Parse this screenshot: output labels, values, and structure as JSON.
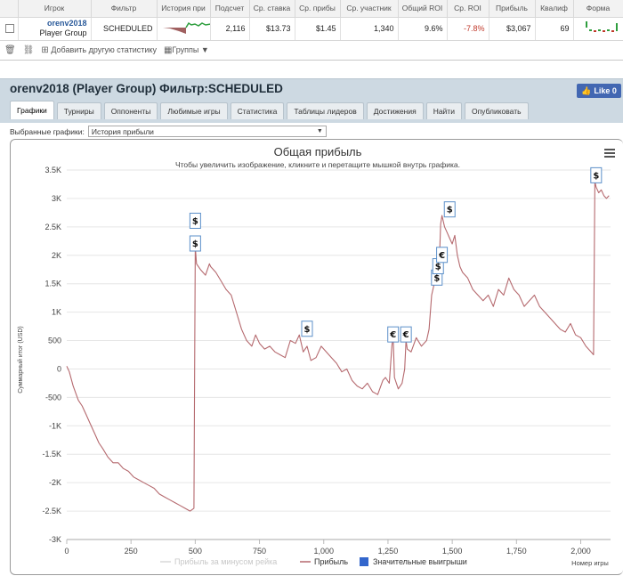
{
  "stats": {
    "headers": [
      "Игрок",
      "Фильтр",
      "История при",
      "Подсчет",
      "Ср. ставка",
      "Ср. прибы",
      "Ср. участник",
      "Общий ROI",
      "Ср. ROI",
      "Прибыль",
      "Квалиф",
      "Форма"
    ],
    "row": {
      "player_name": "orenv2018",
      "player_group": "Player Group",
      "filter": "SCHEDULED",
      "count": "2,116",
      "avg_stake": "$13.73",
      "avg_profit": "$1.45",
      "avg_entrants": "1,340",
      "total_roi": "9.6%",
      "avg_roi": "-7.8%",
      "profit": "$3,067",
      "qualif": "69"
    },
    "toolbar": {
      "add_stat": "Добавить другую статистику",
      "groups": "Группы"
    }
  },
  "header": {
    "title": "orenv2018 (Player Group) Фильтр:SCHEDULED",
    "like": "Like 0",
    "tabs": [
      "Графики",
      "Турниры",
      "Оппоненты",
      "Любимые игры",
      "Статистика",
      "Таблицы лидеров",
      "Достижения",
      "Найти",
      "Опубликовать"
    ],
    "active_tab": 0
  },
  "selector": {
    "label": "Выбранные графики:",
    "value": "История прибыли"
  },
  "colors": {
    "line": "#b5696e",
    "neg_roi": "#c0392b",
    "flag_border": "#5b8fc9",
    "legend_blue": "#3366cc"
  },
  "chart_data": {
    "type": "line",
    "title": "Общая прибыль",
    "subtitle": "Чтобы увеличить изображение, кликните и перетащите мышкой внутрь графика.",
    "ylabel": "Суммарный итог (USD)",
    "xlabel": "Номер игры",
    "xlim": [
      0,
      2116
    ],
    "ylim": [
      -3000,
      3500
    ],
    "x_ticks": [
      0,
      250,
      500,
      750,
      1000,
      1250,
      1500,
      1750,
      2000
    ],
    "y_ticks": [
      -3000,
      -2500,
      -2000,
      -1500,
      -1000,
      -500,
      0,
      500,
      1000,
      1500,
      2000,
      2500,
      3000,
      3500
    ],
    "x_tick_labels": [
      "0",
      "250",
      "500",
      "750",
      "1,000",
      "1,250",
      "1,500",
      "1,750",
      "2,000"
    ],
    "y_tick_labels": [
      "-3K",
      "-2.5K",
      "-2K",
      "-1.5K",
      "-1K",
      "-500",
      "0",
      "500",
      "1K",
      "1.5K",
      "2K",
      "2.5K",
      "3K",
      "3.5K"
    ],
    "legend": [
      "Прибыль за минусом рейка",
      "Прибыль",
      "Значительные выигрыши"
    ],
    "series": [
      {
        "name": "Прибыль",
        "x": [
          0,
          10,
          25,
          45,
          60,
          75,
          90,
          110,
          125,
          140,
          160,
          180,
          200,
          220,
          240,
          260,
          280,
          300,
          320,
          340,
          360,
          380,
          400,
          420,
          440,
          460,
          480,
          495,
          500,
          505,
          520,
          540,
          555,
          560,
          580,
          600,
          620,
          640,
          660,
          680,
          700,
          720,
          735,
          750,
          770,
          790,
          810,
          830,
          850,
          870,
          890,
          905,
          920,
          935,
          950,
          970,
          990,
          1010,
          1030,
          1050,
          1070,
          1090,
          1110,
          1130,
          1150,
          1170,
          1190,
          1210,
          1230,
          1240,
          1255,
          1265,
          1270,
          1275,
          1290,
          1305,
          1315,
          1320,
          1325,
          1340,
          1360,
          1380,
          1400,
          1410,
          1420,
          1430,
          1440,
          1450,
          1455,
          1460,
          1470,
          1480,
          1490,
          1500,
          1510,
          1520,
          1530,
          1540,
          1560,
          1580,
          1600,
          1620,
          1640,
          1660,
          1680,
          1700,
          1720,
          1740,
          1760,
          1780,
          1800,
          1820,
          1840,
          1860,
          1880,
          1900,
          1920,
          1940,
          1960,
          1980,
          2000,
          2020,
          2040,
          2050,
          2055,
          2060,
          2070,
          2080,
          2090,
          2100,
          2110
        ],
        "y": [
          50,
          -50,
          -300,
          -550,
          -650,
          -800,
          -950,
          -1150,
          -1300,
          -1400,
          -1550,
          -1650,
          -1650,
          -1750,
          -1800,
          -1900,
          -1950,
          -2000,
          -2050,
          -2100,
          -2200,
          -2250,
          -2300,
          -2350,
          -2400,
          -2450,
          -2500,
          -2450,
          2150,
          1850,
          1750,
          1650,
          1850,
          1800,
          1700,
          1550,
          1400,
          1300,
          1000,
          700,
          500,
          400,
          600,
          450,
          350,
          400,
          300,
          250,
          200,
          500,
          450,
          600,
          300,
          400,
          150,
          200,
          400,
          300,
          200,
          100,
          -50,
          0,
          -200,
          -300,
          -350,
          -250,
          -400,
          -450,
          -200,
          -150,
          -250,
          400,
          600,
          -150,
          -350,
          -250,
          0,
          500,
          350,
          300,
          550,
          400,
          500,
          700,
          1300,
          1500,
          1800,
          1900,
          2550,
          2700,
          2500,
          2400,
          2300,
          2200,
          2350,
          2000,
          1800,
          1700,
          1600,
          1400,
          1300,
          1200,
          1300,
          1100,
          1400,
          1300,
          1600,
          1400,
          1300,
          1100,
          1200,
          1300,
          1100,
          1000,
          900,
          800,
          700,
          650,
          800,
          600,
          550,
          400,
          300,
          250,
          3300,
          3200,
          3100,
          3150,
          3050,
          3000,
          3050
        ]
      }
    ],
    "big_wins": [
      {
        "x": 500,
        "y": 2200,
        "sym": "$"
      },
      {
        "x": 500,
        "y": 2600,
        "sym": "$"
      },
      {
        "x": 935,
        "y": 700,
        "sym": "$"
      },
      {
        "x": 1270,
        "y": 600,
        "sym": "€"
      },
      {
        "x": 1320,
        "y": 600,
        "sym": "€"
      },
      {
        "x": 1440,
        "y": 1600,
        "sym": "$"
      },
      {
        "x": 1445,
        "y": 1800,
        "sym": "$"
      },
      {
        "x": 1460,
        "y": 2000,
        "sym": "€"
      },
      {
        "x": 1490,
        "y": 2800,
        "sym": "$"
      },
      {
        "x": 2060,
        "y": 3400,
        "sym": "$"
      }
    ]
  }
}
